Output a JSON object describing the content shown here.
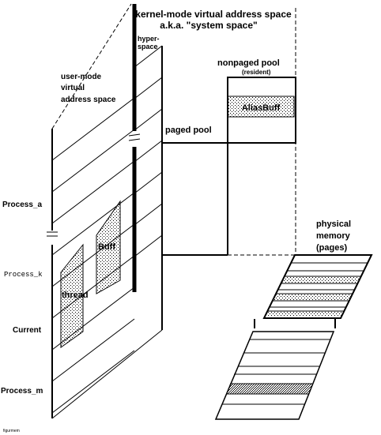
{
  "diagram": {
    "kernel_space_line1": "kernel-mode virtual address space",
    "kernel_space_line2": "a.k.a. \"system space\"",
    "hyperspace_line1": "hyper-",
    "hyperspace_line2": "space",
    "user_space_line1": "user-mode",
    "user_space_line2": "virtual",
    "user_space_line3": "address space",
    "nonpaged_pool": "nonpaged pool",
    "nonpaged_resident": "(resident)",
    "alias_buff": "AliasBuff",
    "paged_pool": "paged pool",
    "buff": "Buff",
    "thread": "thread",
    "process_a": "Process_a",
    "process_k": "Process_k",
    "current": "Current",
    "process_m": "Process_m",
    "physical_line1": "physical",
    "physical_line2": "memory",
    "physical_line3": "(pages)",
    "footnote": "figurmem"
  },
  "colors": {
    "ink": "#000000",
    "stipple": "#000000",
    "background": "#ffffff"
  }
}
